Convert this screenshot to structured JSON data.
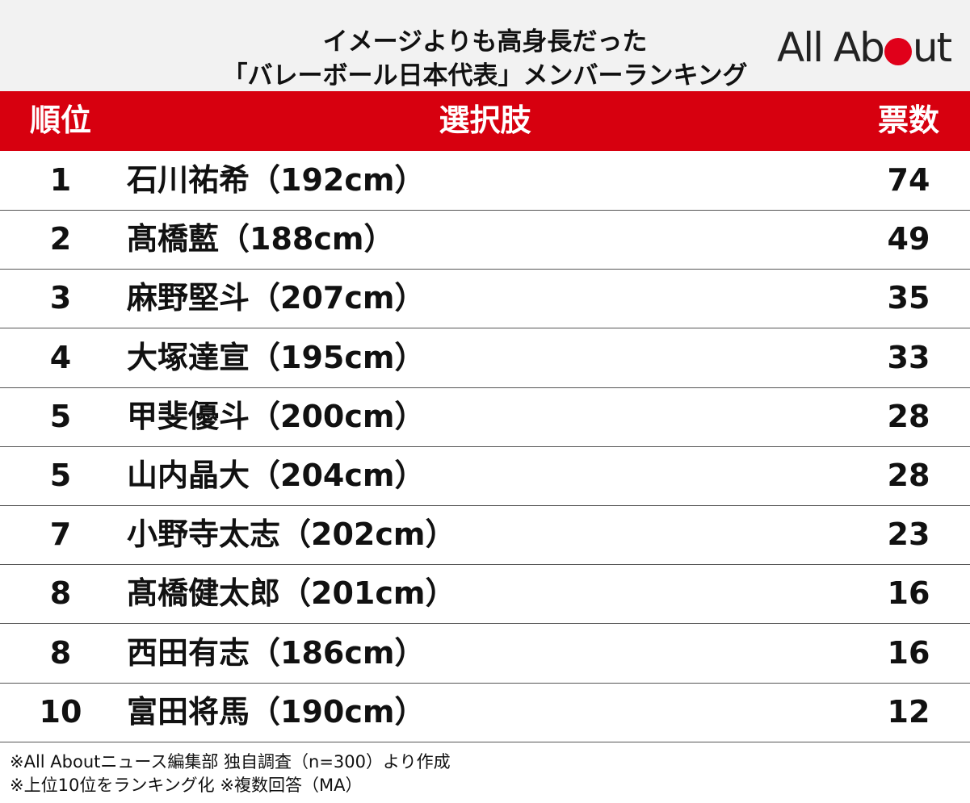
{
  "header": {
    "title_lines": [
      "イメージよりも高身長だった",
      "「バレーボール日本代表」メンバーランキング"
    ],
    "logo": {
      "left": "All Ab",
      "right": "ut"
    }
  },
  "table": {
    "columns": [
      "順位",
      "選択肢",
      "票数"
    ],
    "rows": [
      [
        "1",
        "石川祐希（192cm）",
        "74"
      ],
      [
        "2",
        "髙橋藍（188cm）",
        "49"
      ],
      [
        "3",
        "麻野堅斗（207cm）",
        "35"
      ],
      [
        "4",
        "大塚達宣（195cm）",
        "33"
      ],
      [
        "5",
        "甲斐優斗（200cm）",
        "28"
      ],
      [
        "5",
        "山内晶大（204cm）",
        "28"
      ],
      [
        "7",
        "小野寺太志（202cm）",
        "23"
      ],
      [
        "8",
        "髙橋健太郎（201cm）",
        "16"
      ],
      [
        "8",
        "西田有志（186cm）",
        "16"
      ],
      [
        "10",
        "富田将馬（190cm）",
        "12"
      ]
    ]
  },
  "footnotes": [
    "※All Aboutニュース編集部 独自調査（n=300）より作成",
    "※上位10位をランキング化 ※複数回答（MA）"
  ]
}
